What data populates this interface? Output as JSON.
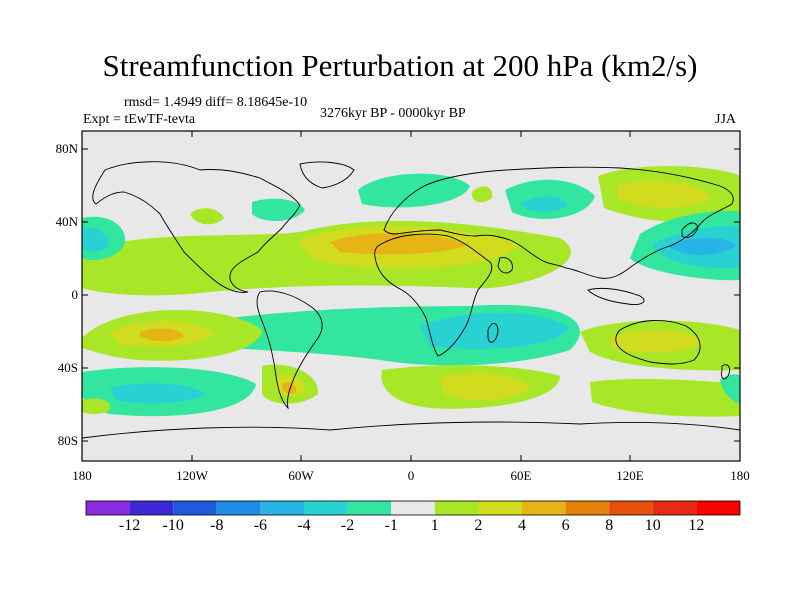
{
  "title": "Streamfunction Perturbation at 200 hPa (km2/s)",
  "stats": "rmsd= 1.4949 diff= 8.18645e-10",
  "experiment": "Expt = tEwTF-tevta",
  "period": "3276kyr BP - 0000kyr BP",
  "season": "JJA",
  "lat_labels": [
    "80N",
    "40N",
    "0",
    "40S",
    "80S"
  ],
  "lon_labels": [
    "180",
    "120W",
    "60W",
    "0",
    "60E",
    "120E",
    "180"
  ],
  "colorbar": {
    "labels": [
      "-12",
      "-10",
      "-8",
      "-6",
      "-4",
      "-2",
      "-1",
      "1",
      "2",
      "4",
      "6",
      "8",
      "10",
      "12"
    ],
    "colors": [
      "#8a2be2",
      "#3c28d8",
      "#1e5adc",
      "#1e8ce6",
      "#28b4e6",
      "#28d2d2",
      "#32e6a0",
      "#e8e8e8",
      "#a8e628",
      "#d2dc1e",
      "#e6b414",
      "#e6820a",
      "#e6500a",
      "#e62814",
      "#ff0000"
    ]
  }
}
